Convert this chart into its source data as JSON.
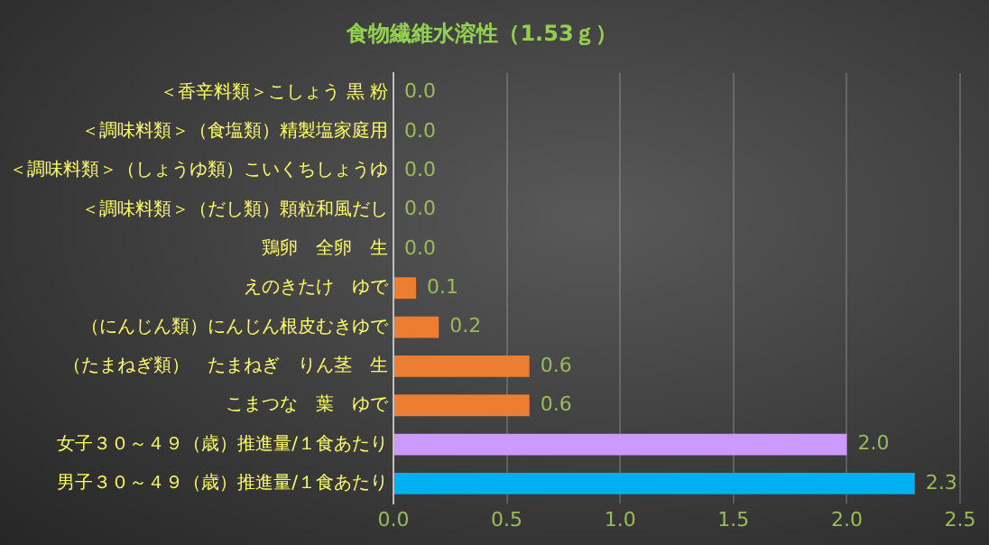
{
  "chart_data": {
    "type": "bar",
    "orientation": "horizontal",
    "title": "食物繊維水溶性（1.53ｇ）",
    "categories": [
      "＜香辛料類＞こしょう 黒 粉",
      "＜調味料類＞（食塩類）精製塩家庭用",
      "＜調味料類＞（しょうゆ類）こいくちしょうゆ",
      "＜調味料類＞（だし類）顆粒和風だし",
      "鶏卵　全卵　生",
      "えのきたけ　ゆで",
      "（にんじん類）にんじん根皮むきゆで",
      "（たまねぎ類）　たまねぎ　りん茎　生",
      "こまつな　葉　ゆで",
      "女子３０～４９（歳）推進量/１食あたり",
      "男子３０～４９（歳）推進量/１食あたり"
    ],
    "values": [
      0.0,
      0.0,
      0.0,
      0.0,
      0.0,
      0.1,
      0.2,
      0.6,
      0.6,
      2.0,
      2.3
    ],
    "colors": [
      "#ed7d31",
      "#ed7d31",
      "#ed7d31",
      "#ed7d31",
      "#ed7d31",
      "#ed7d31",
      "#ed7d31",
      "#ed7d31",
      "#ed7d31",
      "#cc99ff",
      "#00b0f0"
    ],
    "xlim": [
      0,
      2.5
    ],
    "xticks": [
      {
        "value": 0,
        "label": "0.0"
      },
      {
        "value": 0.5,
        "label": "0.5"
      },
      {
        "value": 1,
        "label": "1.0"
      },
      {
        "value": 1.5,
        "label": "1.5"
      },
      {
        "value": 2,
        "label": "2.0"
      },
      {
        "value": 2.5,
        "label": "2.5"
      }
    ],
    "value_labels": [
      "0.0",
      "0.0",
      "0.0",
      "0.0",
      "0.0",
      "0.1",
      "0.2",
      "0.6",
      "0.6",
      "2.0",
      "2.3"
    ],
    "grid": "x",
    "legend": false
  }
}
